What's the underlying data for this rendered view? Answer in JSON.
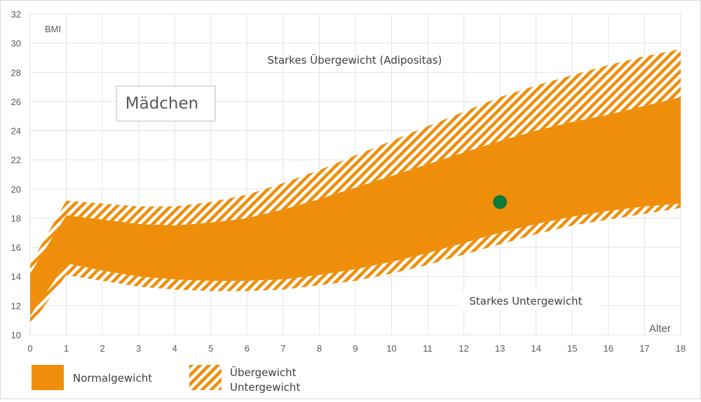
{
  "colors": {
    "normal": "#ef8e0a",
    "hatch": "#ef8e0a",
    "grid": "#e3e3e3",
    "marker": "#0d7a3a"
  },
  "chart_data": {
    "type": "area",
    "title": "",
    "xlabel": "Alter",
    "ylabel": "BMI",
    "xlim": [
      0,
      18
    ],
    "ylim": [
      10,
      32
    ],
    "x_ticks": [
      0,
      1,
      2,
      3,
      4,
      5,
      6,
      7,
      8,
      9,
      10,
      11,
      12,
      13,
      14,
      15,
      16,
      17,
      18
    ],
    "y_ticks": [
      10,
      12,
      14,
      16,
      18,
      20,
      22,
      24,
      26,
      28,
      30,
      32
    ],
    "grid": true,
    "x": [
      0,
      1,
      2,
      3,
      4,
      5,
      6,
      7,
      8,
      9,
      10,
      11,
      12,
      13,
      14,
      15,
      16,
      17,
      18
    ],
    "series": [
      {
        "name": "Untergewicht",
        "lower": [
          10.6,
          14.1,
          13.7,
          13.3,
          13.1,
          13.0,
          13.0,
          13.1,
          13.4,
          13.7,
          14.2,
          14.8,
          15.5,
          16.2,
          16.9,
          17.5,
          17.9,
          18.3,
          18.7
        ],
        "upper": [
          11.3,
          14.9,
          14.4,
          14.0,
          13.8,
          13.7,
          13.7,
          13.8,
          14.1,
          14.5,
          15.0,
          15.6,
          16.3,
          17.0,
          17.6,
          18.1,
          18.5,
          18.8,
          19.0
        ]
      },
      {
        "name": "Normalgewicht",
        "lower": [
          11.3,
          14.9,
          14.4,
          14.0,
          13.8,
          13.7,
          13.7,
          13.8,
          14.1,
          14.5,
          15.0,
          15.6,
          16.3,
          17.0,
          17.6,
          18.1,
          18.5,
          18.8,
          19.0
        ],
        "upper": [
          14.2,
          18.2,
          17.9,
          17.6,
          17.5,
          17.7,
          18.0,
          18.6,
          19.3,
          20.1,
          20.9,
          21.7,
          22.5,
          23.3,
          24.0,
          24.6,
          25.1,
          25.7,
          26.3
        ]
      },
      {
        "name": "Übergewicht",
        "lower": [
          14.2,
          18.2,
          17.9,
          17.6,
          17.5,
          17.7,
          18.0,
          18.6,
          19.3,
          20.1,
          20.9,
          21.7,
          22.5,
          23.3,
          24.0,
          24.6,
          25.1,
          25.7,
          26.3
        ],
        "upper": [
          14.8,
          19.2,
          19.0,
          18.8,
          18.8,
          19.1,
          19.6,
          20.4,
          21.3,
          22.3,
          23.3,
          24.3,
          25.3,
          26.3,
          27.1,
          27.8,
          28.5,
          29.1,
          29.6
        ]
      }
    ],
    "points": [
      {
        "x": 13,
        "y": 19.1
      }
    ],
    "annotations": {
      "top": "Starkes Übergewicht (Adipositas)",
      "bottom": "Starkes Untergewicht",
      "box": "Mädchen"
    }
  },
  "legend": {
    "normal_label": "Normalgewicht",
    "hatch_label_1": "Übergewicht",
    "hatch_label_2": "Untergewicht"
  }
}
